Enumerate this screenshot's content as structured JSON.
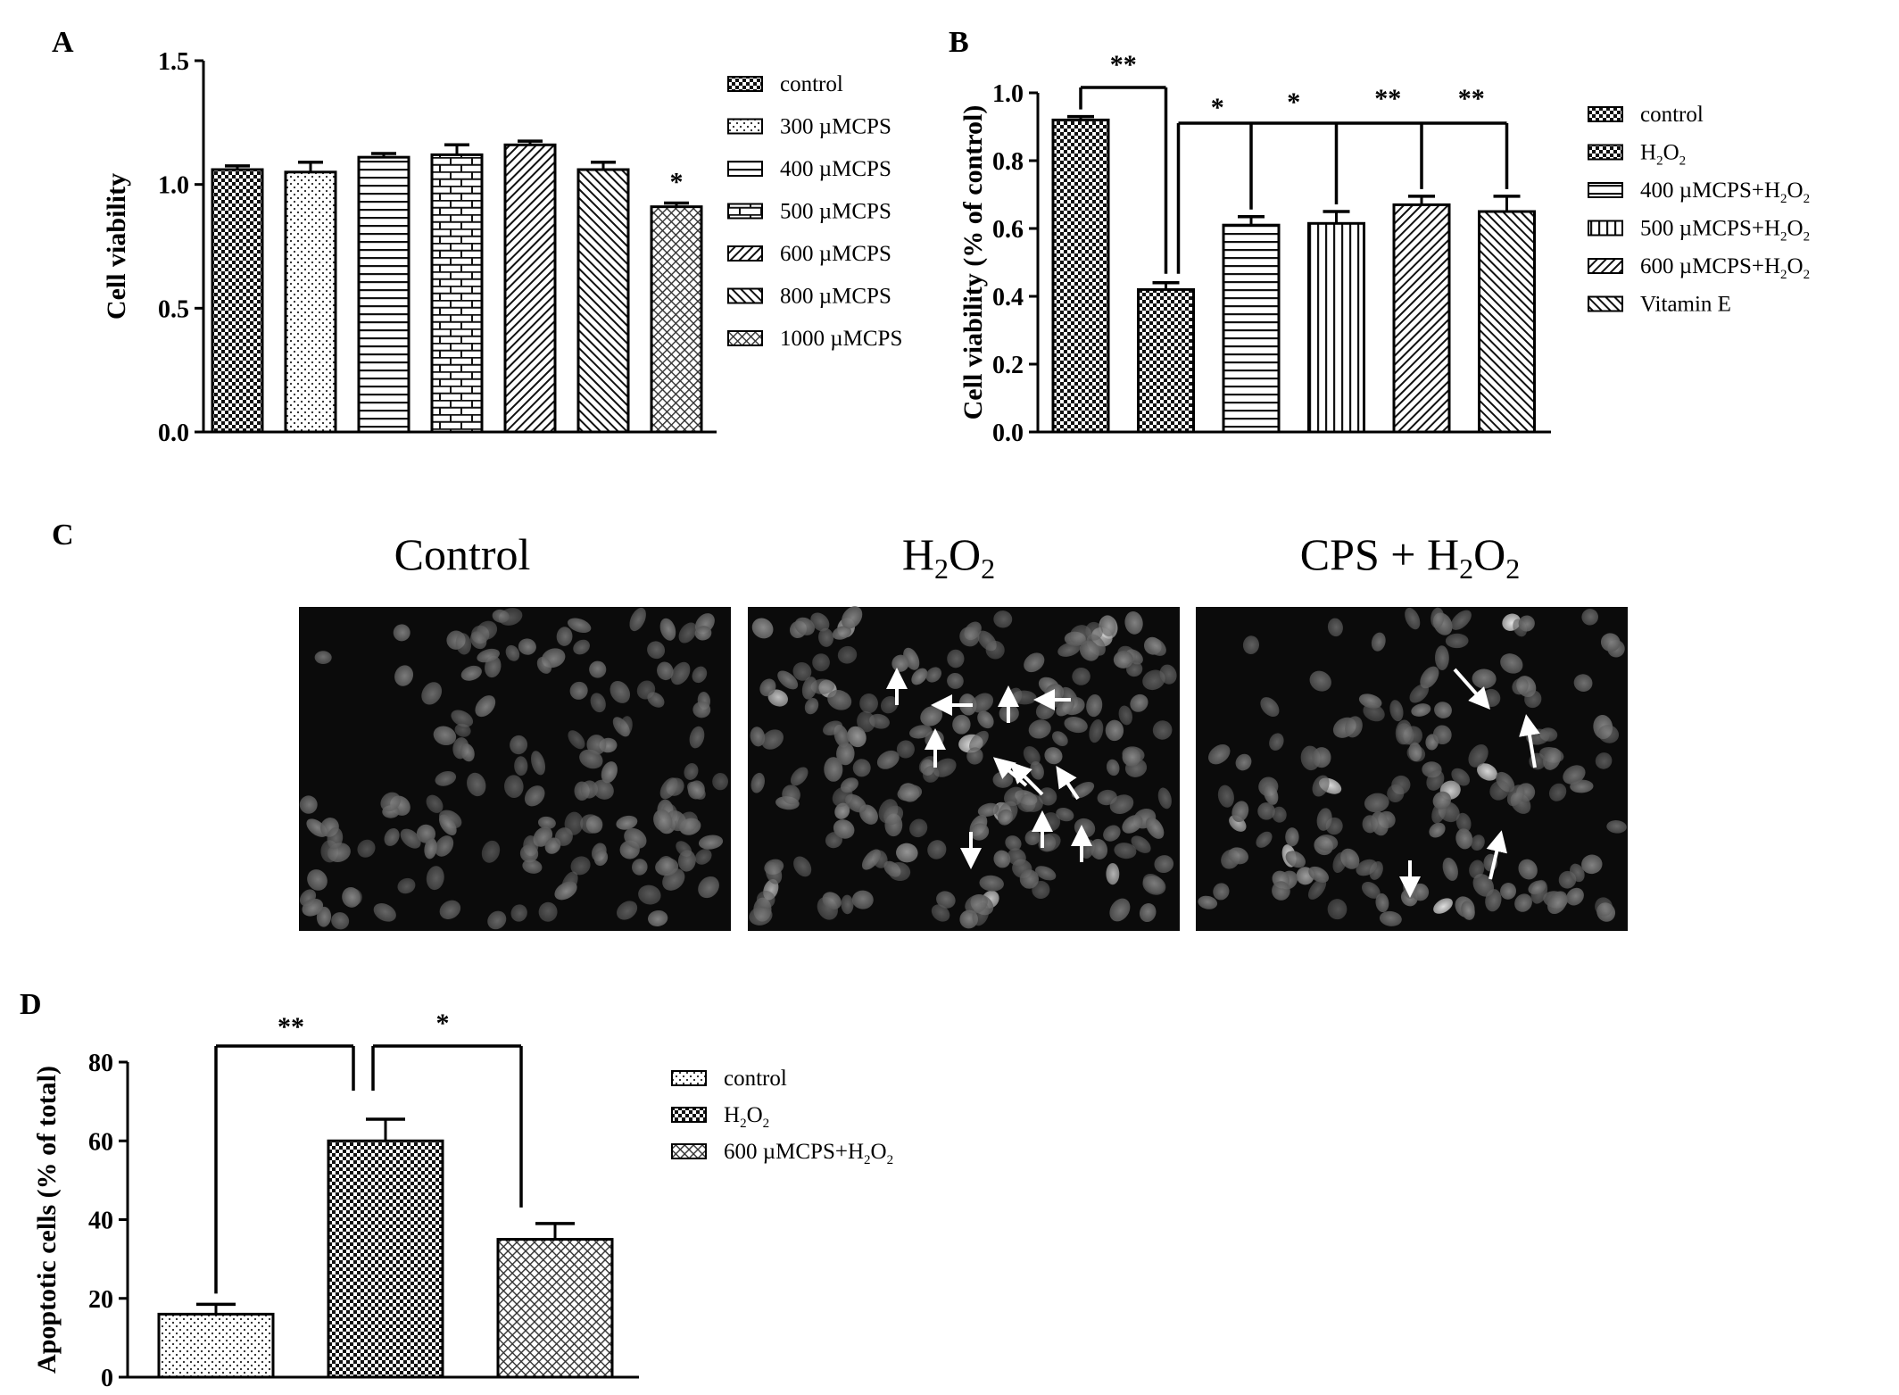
{
  "panels": {
    "a": "A",
    "b": "B",
    "c": "C",
    "d": "D"
  },
  "chart_data": [
    {
      "type": "bar",
      "panel": "A",
      "ylabel": "Cell viability",
      "ylim": [
        0,
        1.5
      ],
      "yticks": [
        "0.0",
        "0.5",
        "1.0",
        "1.5"
      ],
      "categories": [
        "control",
        "300 µMCPS",
        "400 µMCPS",
        "500 µMCPS",
        "600 µMCPS",
        "800 µMCPS",
        "1000 µMCPS"
      ],
      "values": [
        1.06,
        1.05,
        1.11,
        1.12,
        1.16,
        1.06,
        0.91
      ],
      "errors": [
        0.015,
        0.04,
        0.015,
        0.04,
        0.015,
        0.03,
        0.015
      ],
      "patterns": [
        "checker",
        "dots",
        "hlines",
        "bricks",
        "diag-right",
        "diag-left",
        "cross-hatch"
      ],
      "legend_position": "right",
      "significance": [
        {
          "bar": 6,
          "label": "*"
        }
      ]
    },
    {
      "type": "bar",
      "panel": "B",
      "ylabel": "Cell viability (% of control)",
      "ylim": [
        0,
        1.0
      ],
      "yticks": [
        "0.0",
        "0.2",
        "0.4",
        "0.6",
        "0.8",
        "1.0"
      ],
      "categories": [
        "control",
        "H2O2",
        "400 µMCPS+H2O2",
        "500 µMCPS+H2O2",
        "600 µMCPS+H2O2",
        "Vitamin E"
      ],
      "values": [
        0.92,
        0.42,
        0.61,
        0.615,
        0.67,
        0.65
      ],
      "errors": [
        0.01,
        0.02,
        0.025,
        0.035,
        0.025,
        0.045
      ],
      "patterns": [
        "checker",
        "checker",
        "hlines",
        "vlines",
        "diag-right",
        "diag-left"
      ],
      "legend_position": "right",
      "significance": [
        "**",
        "*",
        "*",
        "**",
        "**"
      ]
    },
    {
      "type": "bar",
      "panel": "D",
      "ylabel": "Apoptotic cells (% of total)",
      "ylim": [
        0,
        80
      ],
      "yticks": [
        "0",
        "20",
        "40",
        "60",
        "80"
      ],
      "categories": [
        "control",
        "H2O2",
        "600 µMCPS+H2O2"
      ],
      "values": [
        16,
        60,
        35
      ],
      "errors": [
        2.5,
        5.5,
        4
      ],
      "patterns": [
        "dots",
        "checker",
        "cross-hatch"
      ],
      "legend_position": "right",
      "significance": [
        "**",
        "*"
      ]
    }
  ],
  "micrographs": {
    "titles": [
      "Control",
      "H2O2",
      "CPS + H2O2"
    ],
    "arrow_count": [
      0,
      11,
      5
    ]
  }
}
